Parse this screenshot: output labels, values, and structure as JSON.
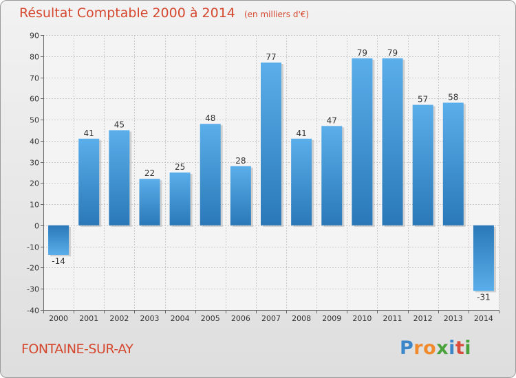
{
  "chart_data": {
    "type": "bar",
    "title": "Résultat Comptable 2000 à 2014",
    "subtitle": "(en milliers d'€)",
    "categories": [
      "2000",
      "2001",
      "2002",
      "2003",
      "2004",
      "2005",
      "2006",
      "2007",
      "2008",
      "2009",
      "2010",
      "2011",
      "2012",
      "2013",
      "2014"
    ],
    "values": [
      -14,
      41,
      45,
      22,
      25,
      48,
      28,
      77,
      41,
      47,
      79,
      79,
      57,
      58,
      -31
    ],
    "ylim": [
      -40,
      90
    ],
    "yticks": [
      -40,
      -30,
      -20,
      -10,
      0,
      10,
      20,
      30,
      40,
      50,
      60,
      70,
      80,
      90
    ],
    "grid": true,
    "xlabel": "",
    "ylabel": ""
  },
  "commune": "FONTAINE-SUR-AY",
  "logo": {
    "text": "Proxiti",
    "letters": [
      "P",
      "r",
      "o",
      "x",
      "i",
      "t",
      "i"
    ],
    "colors": [
      "#3a86c8",
      "#f08a2c",
      "#f08a2c",
      "#4aa23c",
      "#3a86c8",
      "#d94b3a",
      "#4aa23c"
    ]
  },
  "colors": {
    "title": "#d5482e",
    "bar_light": "#5aaeea",
    "bar_dark": "#2a78b8",
    "grid": "#c8c8c8"
  }
}
